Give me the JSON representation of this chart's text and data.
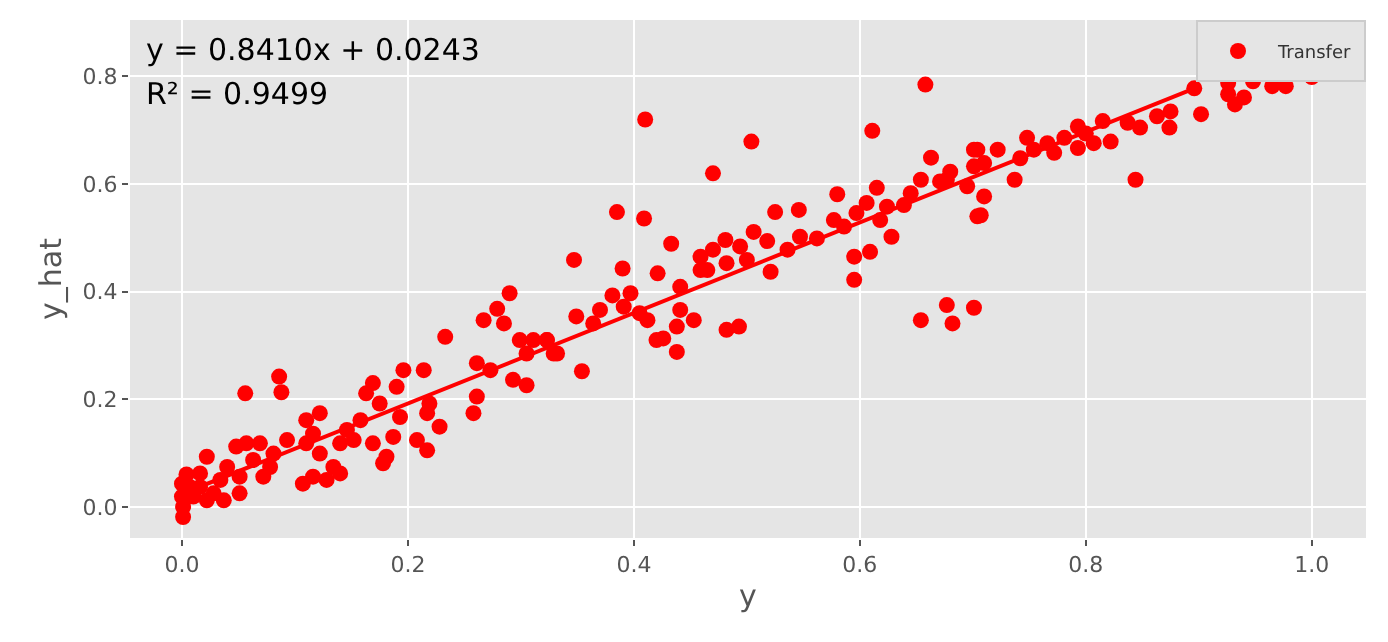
{
  "chart_data": {
    "type": "scatter",
    "xlabel": "y",
    "ylabel": "y_hat",
    "annotations": [
      "y = 0.8410x + 0.0243",
      "R² = 0.9499"
    ],
    "xlim": [
      -0.046,
      1.048
    ],
    "ylim": [
      -0.058,
      0.905
    ],
    "xticks": [
      {
        "value": 0,
        "label": "0.0"
      },
      0.2,
      0.4,
      0.6,
      0.8,
      {
        "value": 1,
        "label": "1.0"
      }
    ],
    "yticks": [
      {
        "value": 0,
        "label": "0.0"
      },
      0.2,
      0.4,
      0.6,
      0.8
    ],
    "grid": true,
    "legend": "top right",
    "series": [
      {
        "name": "Transfer",
        "color": "#ff0000",
        "marker": "circle",
        "x": [
          0.29,
          0.279,
          0.267,
          0.285,
          0.233,
          0.261,
          0.273,
          0.261,
          0.258,
          0.299,
          0.311,
          0.323,
          0.305,
          0.329,
          0.293,
          0.305,
          0.196,
          0.214,
          0.19,
          0.169,
          0.163,
          0.175,
          0.193,
          0.217,
          0.219,
          0.228,
          0.208,
          0.217,
          0.187,
          0.169,
          0.181,
          0.178,
          0.158,
          0.146,
          0.152,
          0.14,
          0.086,
          0.088,
          0.056,
          0.122,
          0.11,
          0.116,
          0.11,
          0.122,
          0.134,
          0.14,
          0.116,
          0.107,
          0.128,
          0.093,
          0.081,
          0.069,
          0.057,
          0.048,
          0.063,
          0.078,
          0.072,
          0.051,
          0.04,
          0.034,
          0.022,
          0.037,
          0.051,
          0.028,
          0.016,
          0.007,
          0.001,
          0.001,
          0.0,
          0.0,
          0.004,
          0.01,
          0.016,
          0.022,
          0.658,
          0.41,
          0.504,
          0.47,
          0.611,
          0.663,
          0.385,
          0.409,
          0.347,
          0.433,
          0.39,
          0.421,
          0.441,
          0.397,
          0.381,
          0.391,
          0.405,
          0.412,
          0.441,
          0.453,
          0.42,
          0.426,
          0.438,
          0.438,
          0.482,
          0.493,
          0.354,
          0.332,
          0.323,
          0.349,
          0.37,
          0.364,
          0.459,
          0.47,
          0.459,
          0.465,
          0.481,
          0.494,
          0.482,
          0.506,
          0.5,
          0.518,
          0.521,
          0.525,
          0.536,
          0.546,
          0.547,
          0.562,
          0.577,
          0.58,
          0.586,
          0.595,
          0.595,
          0.609,
          0.597,
          0.606,
          0.615,
          0.618,
          0.628,
          0.624,
          0.639,
          0.645,
          0.654,
          0.671,
          0.68,
          0.695,
          0.701,
          0.704,
          0.654,
          0.677,
          0.682,
          0.701,
          0.677,
          0.701,
          0.704,
          0.71,
          0.71,
          0.707,
          0.722,
          0.737,
          0.742,
          0.748,
          0.754,
          0.766,
          0.772,
          0.781,
          0.793,
          0.793,
          0.8,
          0.807,
          0.815,
          0.822,
          0.837,
          0.848,
          0.844,
          0.863,
          0.875,
          0.874,
          0.896,
          0.902,
          0.926,
          0.926,
          0.932,
          0.94,
          0.948,
          0.965,
          0.977,
          1.0
        ],
        "values": [
          0.397,
          0.368,
          0.347,
          0.341,
          0.316,
          0.267,
          0.254,
          0.205,
          0.174,
          0.31,
          0.31,
          0.31,
          0.285,
          0.285,
          0.236,
          0.226,
          0.254,
          0.254,
          0.223,
          0.23,
          0.211,
          0.192,
          0.167,
          0.174,
          0.192,
          0.149,
          0.124,
          0.105,
          0.13,
          0.118,
          0.093,
          0.081,
          0.161,
          0.143,
          0.124,
          0.118,
          0.242,
          0.213,
          0.211,
          0.174,
          0.161,
          0.136,
          0.118,
          0.099,
          0.074,
          0.062,
          0.056,
          0.043,
          0.05,
          0.124,
          0.099,
          0.118,
          0.118,
          0.112,
          0.087,
          0.074,
          0.056,
          0.056,
          0.074,
          0.05,
          0.093,
          0.012,
          0.025,
          0.025,
          0.062,
          0.037,
          -0.019,
          0.0,
          0.019,
          0.043,
          0.06,
          0.019,
          0.037,
          0.012,
          0.785,
          0.72,
          0.679,
          0.62,
          0.699,
          0.649,
          0.548,
          0.536,
          0.459,
          0.489,
          0.443,
          0.434,
          0.409,
          0.397,
          0.393,
          0.372,
          0.36,
          0.347,
          0.366,
          0.347,
          0.31,
          0.313,
          0.335,
          0.288,
          0.329,
          0.335,
          0.252,
          0.285,
          0.31,
          0.354,
          0.366,
          0.341,
          0.465,
          0.478,
          0.44,
          0.44,
          0.496,
          0.484,
          0.453,
          0.511,
          0.459,
          0.494,
          0.437,
          0.548,
          0.478,
          0.552,
          0.502,
          0.499,
          0.533,
          0.581,
          0.521,
          0.465,
          0.422,
          0.474,
          0.546,
          0.565,
          0.593,
          0.533,
          0.502,
          0.558,
          0.561,
          0.583,
          0.608,
          0.605,
          0.623,
          0.596,
          0.664,
          0.54,
          0.347,
          0.375,
          0.341,
          0.37,
          0.608,
          0.633,
          0.664,
          0.639,
          0.577,
          0.542,
          0.664,
          0.608,
          0.648,
          0.686,
          0.664,
          0.676,
          0.658,
          0.686,
          0.707,
          0.667,
          0.694,
          0.676,
          0.717,
          0.679,
          0.714,
          0.705,
          0.608,
          0.726,
          0.735,
          0.705,
          0.778,
          0.73,
          0.788,
          0.767,
          0.748,
          0.761,
          0.791,
          0.782,
          0.782,
          0.799
        ]
      },
      {
        "color": "#ff0000",
        "type": "line",
        "line_style": "solid",
        "x": [
          0,
          0.9
        ],
        "values": [
          0.024,
          0.781
        ]
      }
    ]
  }
}
